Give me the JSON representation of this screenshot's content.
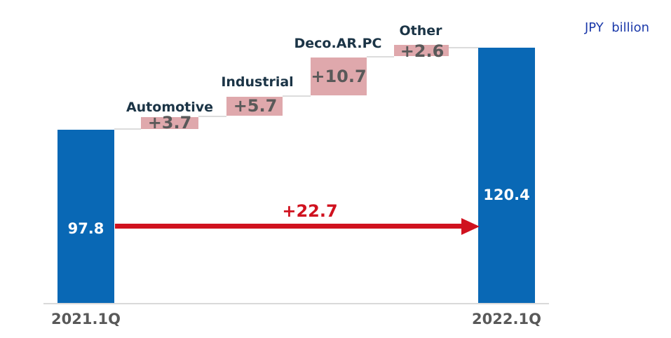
{
  "unit_display": "JPY  billion",
  "chart_data": {
    "type": "waterfall",
    "unit": "JPY billion",
    "start": {
      "label": "2021.1Q",
      "value": 97.8,
      "display": "97.8"
    },
    "end": {
      "label": "2022.1Q",
      "value": 120.4,
      "display": "120.4"
    },
    "deltas": [
      {
        "category": "Automotive",
        "value": 3.7,
        "label": "+3.7"
      },
      {
        "category": "Industrial",
        "value": 5.7,
        "label": "+5.7"
      },
      {
        "category": "Deco.AR.PC",
        "value": 10.7,
        "label": "+10.7"
      },
      {
        "category": "Other",
        "value": 2.6,
        "label": "+2.6"
      }
    ],
    "total_change": {
      "value": 22.7,
      "label": "+22.7"
    },
    "layout": {
      "legend": "none",
      "grid": false,
      "baseline_value": 0
    },
    "colors": {
      "total_bar": "#0968b5",
      "delta_bar": "#dfa8ac",
      "delta_text": "#595959",
      "category_text": "#1b3446",
      "arrow": "#d0121f",
      "axis_line": "#d9d9d9",
      "axis_text": "#595959",
      "unit_text": "#1c3aaa",
      "bar_value_text": "#ffffff"
    }
  }
}
